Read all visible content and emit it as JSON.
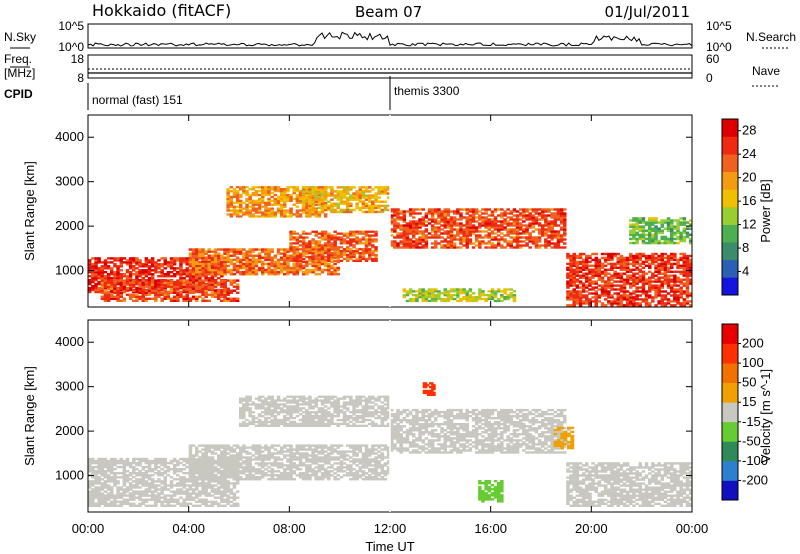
{
  "header": {
    "radar": "Hokkaido (fitACF)",
    "beam": "Beam 07",
    "date": "01/Jul/2011"
  },
  "top_panels": {
    "nsky_label": "N.Sky",
    "nsearch_label": "N.Search",
    "freq_label_line1": "Freq.",
    "freq_label_line2": "[MHz]",
    "nave_label": "Nave",
    "cpid_label": "CPID",
    "nsky_ticks": [
      "10^5",
      "10^0"
    ],
    "nsearch_ticks": [
      "10^5",
      "10^0"
    ],
    "freq_ticks": [
      "18",
      "8"
    ],
    "nave_ticks": [
      "60",
      "0"
    ],
    "cpid_segments": [
      {
        "start_hour": 0,
        "text": "normal (fast) 151"
      },
      {
        "start_hour": 12,
        "text": "themis 3300"
      }
    ]
  },
  "chart_data": [
    {
      "type": "heatmap",
      "name": "power",
      "ylabel": "Slant Range [km]",
      "xlabel": "",
      "x_range_hours": [
        0,
        24
      ],
      "ylim": [
        180,
        4500
      ],
      "y_ticks": [
        "1000",
        "2000",
        "3000",
        "4000"
      ],
      "colorbar": {
        "label": "Power [dB]",
        "ticks": [
          "4",
          "8",
          "12",
          "16",
          "20",
          "24",
          "28"
        ],
        "colors": [
          "#1414e0",
          "#2a5fb4",
          "#3a8c6a",
          "#4caf50",
          "#9acd32",
          "#f0c000",
          "#f39c12",
          "#f06020",
          "#ee2a10",
          "#dd0000"
        ],
        "range": [
          0,
          30
        ]
      },
      "bands": [
        {
          "start": 0.0,
          "end": 5.5,
          "low": 500,
          "high": 1300,
          "value": 26
        },
        {
          "start": 0.5,
          "end": 6.0,
          "low": 300,
          "high": 800,
          "value": 24
        },
        {
          "start": 4.0,
          "end": 10.0,
          "low": 900,
          "high": 1500,
          "value": 22
        },
        {
          "start": 5.5,
          "end": 9.5,
          "low": 2200,
          "high": 2900,
          "value": 20
        },
        {
          "start": 8.0,
          "end": 11.5,
          "low": 1200,
          "high": 1900,
          "value": 23
        },
        {
          "start": 8.5,
          "end": 12.0,
          "low": 2300,
          "high": 2900,
          "value": 18
        },
        {
          "start": 12.0,
          "end": 19.0,
          "low": 1500,
          "high": 2400,
          "value": 24
        },
        {
          "start": 12.5,
          "end": 17.0,
          "low": 300,
          "high": 600,
          "value": 14
        },
        {
          "start": 19.0,
          "end": 24.0,
          "low": 200,
          "high": 1400,
          "value": 25
        },
        {
          "start": 21.5,
          "end": 24.0,
          "low": 1600,
          "high": 2200,
          "value": 12
        }
      ]
    },
    {
      "type": "heatmap",
      "name": "velocity",
      "ylabel": "Slant Range [km]",
      "xlabel": "Time UT",
      "x_range_hours": [
        0,
        24
      ],
      "x_ticks": [
        "00:00",
        "04:00",
        "08:00",
        "12:00",
        "16:00",
        "20:00",
        "00:00"
      ],
      "ylim": [
        180,
        4500
      ],
      "y_ticks": [
        "1000",
        "2000",
        "3000",
        "4000"
      ],
      "colorbar": {
        "label": "Velocity [m s^-1]",
        "ticks": [
          "200",
          "100",
          "50",
          "15",
          "-15",
          "-50",
          "-100",
          "-200"
        ],
        "colors": [
          "#1010c0",
          "#2f7fd0",
          "#2e8b57",
          "#66cc33",
          "#c8c8c0",
          "#f0a000",
          "#f07000",
          "#ff3000",
          "#e80000"
        ],
        "range": [
          -250,
          250
        ]
      },
      "bands": [
        {
          "start": 0.0,
          "end": 6.0,
          "low": 300,
          "high": 1400,
          "value": 0
        },
        {
          "start": 4.0,
          "end": 12.0,
          "low": 900,
          "high": 1700,
          "value": 0
        },
        {
          "start": 6.0,
          "end": 12.0,
          "low": 2100,
          "high": 2800,
          "value": 0
        },
        {
          "start": 12.0,
          "end": 19.0,
          "low": 1500,
          "high": 2500,
          "value": 0
        },
        {
          "start": 15.5,
          "end": 16.5,
          "low": 400,
          "high": 900,
          "value": -40
        },
        {
          "start": 13.3,
          "end": 13.8,
          "low": 2800,
          "high": 3100,
          "value": 150
        },
        {
          "start": 18.5,
          "end": 19.3,
          "low": 1600,
          "high": 2100,
          "value": 30
        },
        {
          "start": 19.0,
          "end": 24.0,
          "low": 300,
          "high": 1300,
          "value": 0
        }
      ]
    }
  ]
}
